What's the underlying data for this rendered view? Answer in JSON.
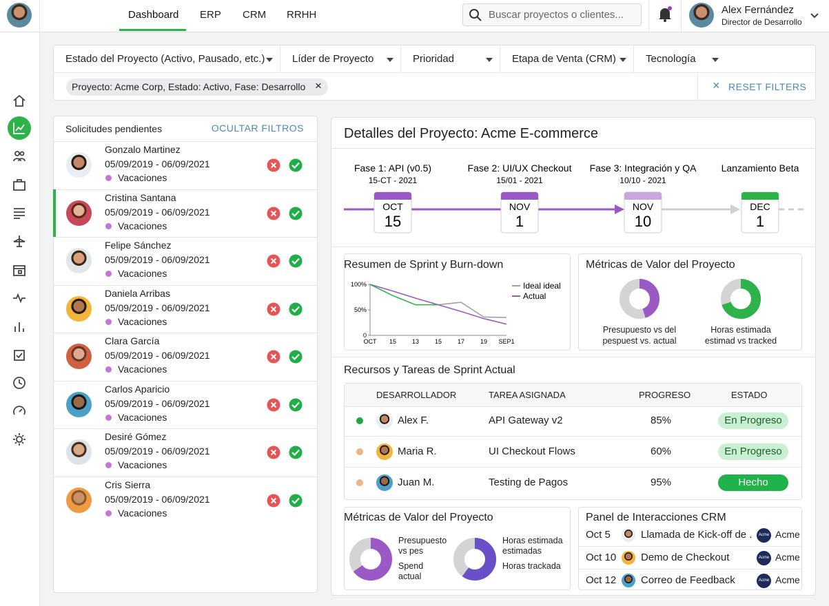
{
  "header": {
    "tabs": [
      "Dashboard",
      "ERP",
      "CRM",
      "RRHH"
    ],
    "search": "Buscar proyectos o clientes...",
    "user_name": "Alex Fernández",
    "user_role": "Director de Desarrollo"
  },
  "filters": {
    "dropdowns": [
      "Estado del Proyecto (Activo, Pausado, etc.)",
      "Líder de Proyecto",
      "Prioridad",
      "Etapa de Venta (CRM)",
      "Tecnología"
    ],
    "chip": "Proyecto: Acme Corp, Estado: Activo, Fase: Desarrollo",
    "reset": "RESET FILTERS"
  },
  "requests": {
    "title": "Solicitudes pendientes",
    "hide": "OCULTAR FILTROS",
    "items": [
      {
        "name": "Gonzalo Martinez",
        "dates": "05/09/2019 - 06/09/2021",
        "type": "Vacaciones"
      },
      {
        "name": "Cristina Santana",
        "dates": "05/09/2019 - 06/09/2021",
        "type": "Vacaciones"
      },
      {
        "name": "Felipe Sánchez",
        "dates": "05/09/2019 - 06/09/2021",
        "type": "Vacaciones"
      },
      {
        "name": "Daniela Arribas",
        "dates": "05/09/2019 - 06/09/2021",
        "type": "Vacaciones"
      },
      {
        "name": "Clara García",
        "dates": "05/09/2019 - 06/09/2021",
        "type": "Vacaciones"
      },
      {
        "name": "Carlos Aparicio",
        "dates": "05/09/2019 - 06/09/2021",
        "type": "Vacaciones"
      },
      {
        "name": "Desiré Gómez",
        "dates": "05/09/2019 - 06/09/2021",
        "type": "Vacaciones"
      },
      {
        "name": "Cris Sierra",
        "dates": "05/09/2019 - 06/09/2021",
        "type": "Vacaciones"
      }
    ]
  },
  "project": {
    "title": "Detalles del Proyecto: Acme E-commerce",
    "milestones": [
      {
        "label": "Fase 1: API (v0.5)",
        "date": "15-CT - 2021",
        "month": "OCT",
        "day": "15",
        "color": "#9b59c6"
      },
      {
        "label": "Fase 2: UI/UX Checkout",
        "date": "15/01 - 2021",
        "month": "NOV",
        "day": "1",
        "color": "#9b59c6"
      },
      {
        "label": "Fase 3: Integración y QA",
        "date": "10/10 - 2021",
        "month": "NOV",
        "day": "10",
        "color": "#c9a6dd"
      },
      {
        "label": "Lanzamiento Beta",
        "month": "DEC",
        "day": "1",
        "color": "#2db34a"
      }
    ]
  },
  "sprint": {
    "title": "Resumen de Sprint y Burn-down",
    "type": "line",
    "x": [
      "OCT",
      "15",
      "13",
      "15",
      "17",
      "19",
      "SEP1"
    ],
    "ylim": [
      0,
      100
    ],
    "yticks": [
      0,
      {
        "value": 50,
        "label": "50%"
      },
      {
        "value": 100,
        "label": "100%"
      }
    ],
    "series": [
      {
        "name": "Ideal ideal",
        "color": "#a0a0a0",
        "values": [
          null,
          null,
          null,
          60,
          65,
          36,
          35
        ]
      },
      {
        "name": "Actual",
        "color": "#9b59c6",
        "values": [
          100,
          87,
          73,
          60,
          47,
          33,
          22
        ]
      },
      {
        "color": "#2db34a",
        "values": [
          100,
          78,
          60,
          60,
          null,
          null,
          null
        ]
      }
    ]
  },
  "value_metrics": {
    "title": "Métricas de Valor del Proyecto",
    "donuts": [
      {
        "label": "Presupuesto vs del pespuest vs. actual",
        "value": 45,
        "color": "#9b59c6"
      },
      {
        "label": "Horas estimada estimad vs tracked",
        "value": 70,
        "color": "#2db34a"
      }
    ]
  },
  "resources": {
    "title": "Recursos y Tareas de Sprint Actual",
    "columns": [
      "DESARROLLADOR",
      "TAREA ASIGNADA",
      "PROGRESO",
      "ESTADO"
    ],
    "rows": [
      {
        "developer": "Alex F.",
        "task": "API Gateway v2",
        "progress": "85%",
        "status": "En Progreso",
        "dot_color": "#22a544",
        "badge_color": "#c9f1d1"
      },
      {
        "developer": "Maria R.",
        "task": "UI Checkout Flows",
        "progress": "60%",
        "status": "En Progreso",
        "dot_color": "#f0b088",
        "badge_color": "#c9f1d1"
      },
      {
        "developer": "Juan M.",
        "task": "Testing de Pagos",
        "progress": "95%",
        "status": "Hecho",
        "dot_color": "#f0b088",
        "badge_color": "#1fb34a"
      }
    ]
  },
  "bottom_metrics": {
    "title": "Métricas de Valor del Proyecto",
    "donuts": [
      {
        "labels": [
          "Presupuesto vs pes",
          "Spend actual"
        ],
        "value": 65,
        "color": "#9b59c6"
      },
      {
        "labels": [
          "Horas estimada estimadas",
          "Horas trackada"
        ],
        "value": 60,
        "color": "#6a4fc9"
      }
    ]
  },
  "crm": {
    "title": "Panel de Interacciones CRM",
    "rows": [
      {
        "date": "Oct 5",
        "text": "Llamada de Kick-off de ...",
        "company": "Acme"
      },
      {
        "date": "Oct 10",
        "text": "Demo de Checkout",
        "company": "Acme"
      },
      {
        "date": "Oct 12",
        "text": "Correo de Feedback",
        "company": "Acme"
      }
    ]
  }
}
